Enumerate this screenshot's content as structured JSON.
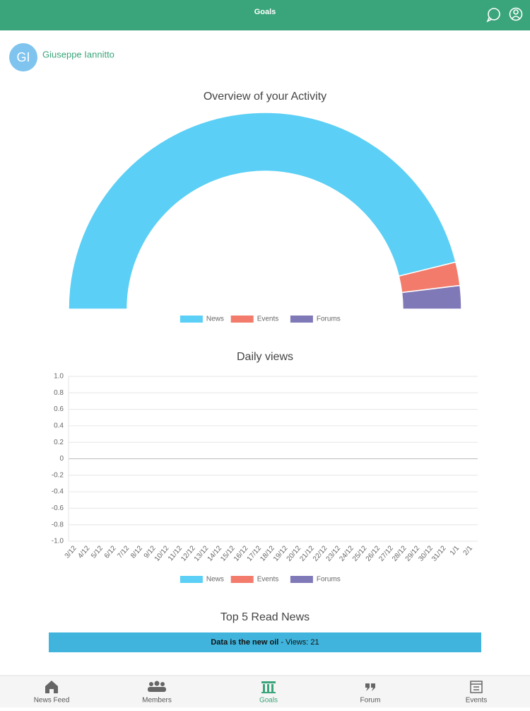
{
  "header": {
    "title": "Goals"
  },
  "user": {
    "initials": "GI",
    "name": "Giuseppe Iannitto"
  },
  "chart_data": [
    {
      "type": "half-doughnut",
      "title": "Overview of your Activity",
      "categories": [
        "News",
        "Events",
        "Forums"
      ],
      "values": [
        24,
        1,
        1
      ],
      "colors": [
        "#5bcff5",
        "#f27b6b",
        "#8079b8"
      ]
    },
    {
      "type": "line",
      "title": "Daily views",
      "categories": [
        "3/12",
        "4/12",
        "5/12",
        "6/12",
        "7/12",
        "8/12",
        "9/12",
        "10/12",
        "11/12",
        "12/12",
        "13/12",
        "14/12",
        "15/12",
        "16/12",
        "17/12",
        "18/12",
        "19/12",
        "20/12",
        "21/12",
        "22/12",
        "23/12",
        "24/12",
        "25/12",
        "26/12",
        "27/12",
        "28/12",
        "29/12",
        "30/12",
        "31/12",
        "1/1",
        "2/1"
      ],
      "series": [
        {
          "name": "News",
          "color": "#5bcff5",
          "values": [
            null,
            null,
            null,
            null,
            null,
            null,
            null,
            null,
            null,
            null,
            null,
            null,
            null,
            null,
            null,
            null,
            null,
            null,
            null,
            null,
            null,
            null,
            null,
            null,
            null,
            null,
            null,
            null,
            null,
            null,
            null
          ]
        },
        {
          "name": "Events",
          "color": "#f27b6b",
          "values": [
            null,
            null,
            null,
            null,
            null,
            null,
            null,
            null,
            null,
            null,
            null,
            null,
            null,
            null,
            null,
            null,
            null,
            null,
            null,
            null,
            null,
            null,
            null,
            null,
            null,
            null,
            null,
            null,
            null,
            null,
            null
          ]
        },
        {
          "name": "Forums",
          "color": "#8079b8",
          "values": [
            null,
            null,
            null,
            null,
            null,
            null,
            null,
            null,
            null,
            null,
            null,
            null,
            null,
            null,
            null,
            null,
            null,
            null,
            null,
            null,
            null,
            null,
            null,
            null,
            null,
            null,
            null,
            null,
            null,
            null,
            null
          ]
        }
      ],
      "ylim": [
        -1,
        1
      ],
      "yticks": [
        {
          "value": 1,
          "label": "1.0"
        },
        0.8,
        0.6,
        0.4,
        0.2,
        0,
        -0.2,
        -0.4,
        -0.6,
        -0.8,
        {
          "value": -1,
          "label": "-1.0"
        }
      ],
      "grid": true
    }
  ],
  "top_news": {
    "title": "Top 5 Read News",
    "rows": [
      {
        "title": "Data is the new oil",
        "views_label": "- Views:",
        "views": 21
      }
    ]
  },
  "nav": [
    "News Feed",
    "Members",
    "Goals",
    "Forum",
    "Events"
  ]
}
